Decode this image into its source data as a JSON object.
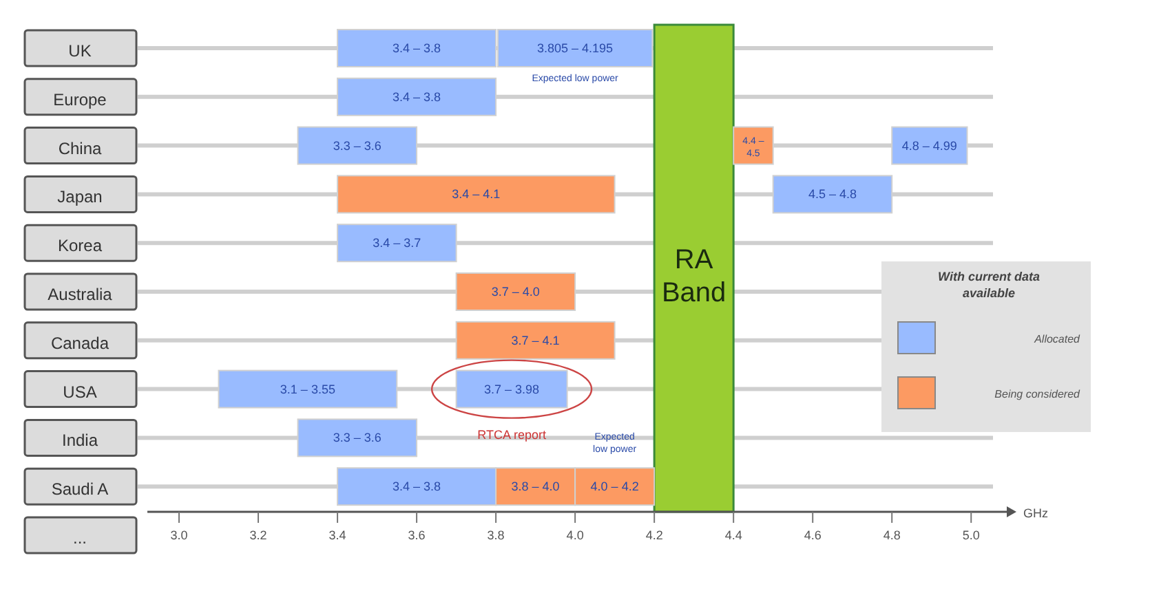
{
  "chart_data": {
    "type": "bar",
    "orientation": "horizontal",
    "xlabel": "GHz",
    "legend_title": "With current data available",
    "legend": "right",
    "grid": "y",
    "categories": [
      "UK",
      "Europe",
      "China",
      "Japan",
      "Korea",
      "Australia",
      "Canada",
      "USA",
      "India",
      "Saudi A",
      "..."
    ],
    "series": [
      {
        "name": "Allocated",
        "color": "#99bbff",
        "base": [
          3.4,
          3.4,
          3.3,
          4.5,
          3.4,
          null,
          null,
          3.1,
          3.3,
          3.4,
          null
        ],
        "values": [
          0.4,
          0.4,
          0.3,
          0.3,
          0.3,
          null,
          null,
          0.45,
          0.3,
          0.4,
          null
        ]
      },
      {
        "color": "#99bbff",
        "base": [
          3.805,
          null,
          4.8,
          null,
          null,
          null,
          null,
          3.7,
          null,
          null,
          null
        ],
        "values": [
          0.39,
          null,
          0.19,
          null,
          null,
          null,
          null,
          0.28,
          null,
          null,
          null
        ]
      },
      {
        "name": "Being considered",
        "color": "#fc9a62",
        "base": [
          null,
          null,
          4.4,
          3.4,
          null,
          3.7,
          3.7,
          null,
          null,
          3.8,
          null
        ],
        "values": [
          null,
          null,
          0.1,
          0.7,
          null,
          0.3,
          0.4,
          null,
          null,
          0.2,
          null
        ]
      },
      {
        "color": "#fc9a62",
        "base": [
          null,
          null,
          null,
          null,
          null,
          null,
          null,
          null,
          null,
          4.0,
          null
        ],
        "values": [
          null,
          null,
          null,
          null,
          null,
          null,
          null,
          null,
          null,
          0.2,
          null
        ]
      }
    ],
    "xlim": [
      2.92,
      5.09
    ],
    "xticks": [
      {
        "value": 3,
        "label": "3.0"
      },
      {
        "value": 3.2,
        "label": "3.2"
      },
      {
        "value": 3.4,
        "label": "3.4"
      },
      {
        "value": 3.6,
        "label": "3.6"
      },
      {
        "value": 3.8,
        "label": "3.8"
      },
      {
        "value": 4,
        "label": "4.0"
      },
      {
        "value": 4.2,
        "label": "4.2"
      },
      {
        "value": 4.4,
        "label": "4.4"
      },
      {
        "value": 4.6,
        "label": "4.6"
      },
      {
        "value": 4.8,
        "label": "4.8"
      },
      {
        "value": 5,
        "label": "5.0"
      }
    ],
    "bands": [
      {
        "axis": "x",
        "from": 4.2,
        "to": 4.4,
        "label": "RA Band",
        "color": "#9acd32"
      }
    ],
    "annotations": [
      "Expected low power",
      "RTCA report",
      "Expected low power",
      {
        "text": "3.4 – 3.8",
        "x": 3.6,
        "y": "UK"
      },
      {
        "text": "3.805 – 4.195",
        "x": 4.0,
        "y": "UK"
      },
      {
        "text": "3.4 – 3.8",
        "x": 3.6,
        "y": "Europe"
      },
      {
        "text": "3.3 – 3.6",
        "x": 3.45,
        "y": "China"
      },
      {
        "text": "4.4 – 4.5",
        "x": 4.45,
        "y": "China"
      },
      {
        "text": "4.8 – 4.99",
        "x": 4.895,
        "y": "China"
      },
      {
        "text": "3.4 – 4.1",
        "x": 3.75,
        "y": "Japan"
      },
      {
        "text": "4.5 – 4.8",
        "x": 4.65,
        "y": "Japan"
      },
      {
        "text": "3.4 – 3.7",
        "x": 3.55,
        "y": "Korea"
      },
      {
        "text": "3.7 – 4.0",
        "x": 3.85,
        "y": "Australia"
      },
      {
        "text": "3.7 – 4.1",
        "x": 3.9,
        "y": "Canada"
      },
      {
        "text": "3.1 – 3.55",
        "x": 3.325,
        "y": "USA"
      },
      {
        "text": "3.7 – 3.98",
        "x": 3.84,
        "y": "USA"
      },
      {
        "text": "3.3 – 3.6",
        "x": 3.45,
        "y": "India"
      },
      {
        "text": "3.4 – 3.8",
        "x": 3.6,
        "y": "Saudi A"
      },
      {
        "text": "3.8 – 4.0",
        "x": 3.9,
        "y": "Saudi A"
      },
      {
        "text": "4.0 – 4.2",
        "x": 4.1,
        "y": "Saudi A"
      }
    ]
  }
}
